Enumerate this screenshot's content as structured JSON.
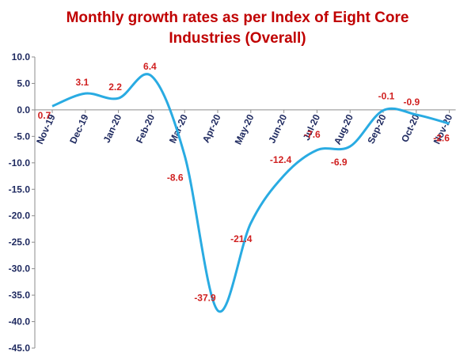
{
  "chart_data": {
    "type": "line",
    "title": [
      "Monthly growth rates as per Index of Eight Core",
      "Industries (Overall)"
    ],
    "xlabel": "",
    "ylabel": "",
    "categories": [
      "Nov-19",
      "Dec-19",
      "Jan-20",
      "Feb-20",
      "Mar-20",
      "Apr-20",
      "May-20",
      "Jun-20",
      "Jul-20",
      "Aug-20",
      "Sep-20",
      "Oct-20",
      "Nov-20"
    ],
    "series": [
      {
        "values": [
          0.7,
          3.1,
          2.2,
          6.4,
          -8.6,
          -37.9,
          -21.4,
          -12.4,
          -7.6,
          -6.9,
          -0.1,
          -0.9,
          -2.6
        ],
        "labels": [
          "0.7",
          "3.1",
          "2.2",
          "6.4",
          "-8.6",
          "-37.9",
          "-21.4",
          "-12.4",
          "-7.6",
          "-6.9",
          "-0.1",
          "-0.9",
          "-2.6"
        ]
      }
    ],
    "ylim": [
      -45,
      10
    ],
    "yticks": [
      "10.0",
      "5.0",
      "0.0",
      "-5.0",
      "-10.0",
      "-15.0",
      "-20.0",
      "-25.0",
      "-30.0",
      "-35.0",
      "-40.0",
      "-45.0"
    ],
    "grid": false,
    "legend": "none",
    "colors": {
      "line": "#29abe2",
      "axis": "#8c8c8c",
      "tick_text": "#1f2a60",
      "data_label": "#d02020",
      "title": "#c00000"
    }
  }
}
